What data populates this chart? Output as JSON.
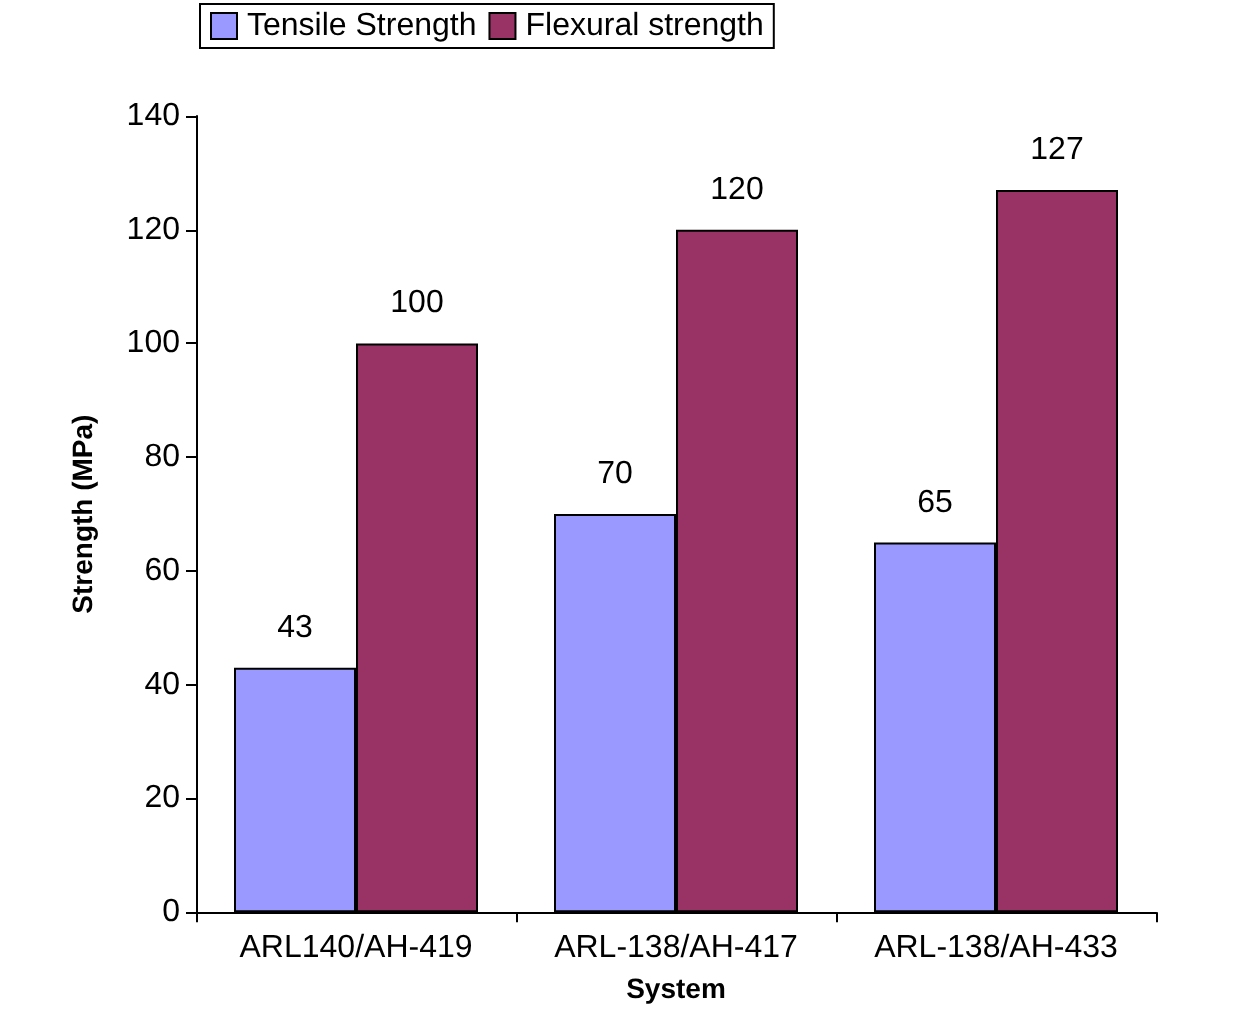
{
  "chart_data": {
    "type": "bar",
    "xlabel": "System",
    "ylabel": "Strength (MPa)",
    "categories": [
      "ARL140/AH-419",
      "ARL-138/AH-417",
      "ARL-138/AH-433"
    ],
    "series": [
      {
        "name": "Tensile Strength",
        "color": "#9999ff",
        "values": [
          43,
          70,
          65
        ]
      },
      {
        "name": "Flexural strength",
        "color": "#993366",
        "values": [
          100,
          120,
          127
        ]
      }
    ],
    "ylim": [
      0,
      140
    ],
    "yticks": [
      0,
      20,
      40,
      60,
      80,
      100,
      120,
      140
    ],
    "grid": false,
    "legend": "top left",
    "data_labels": true
  }
}
